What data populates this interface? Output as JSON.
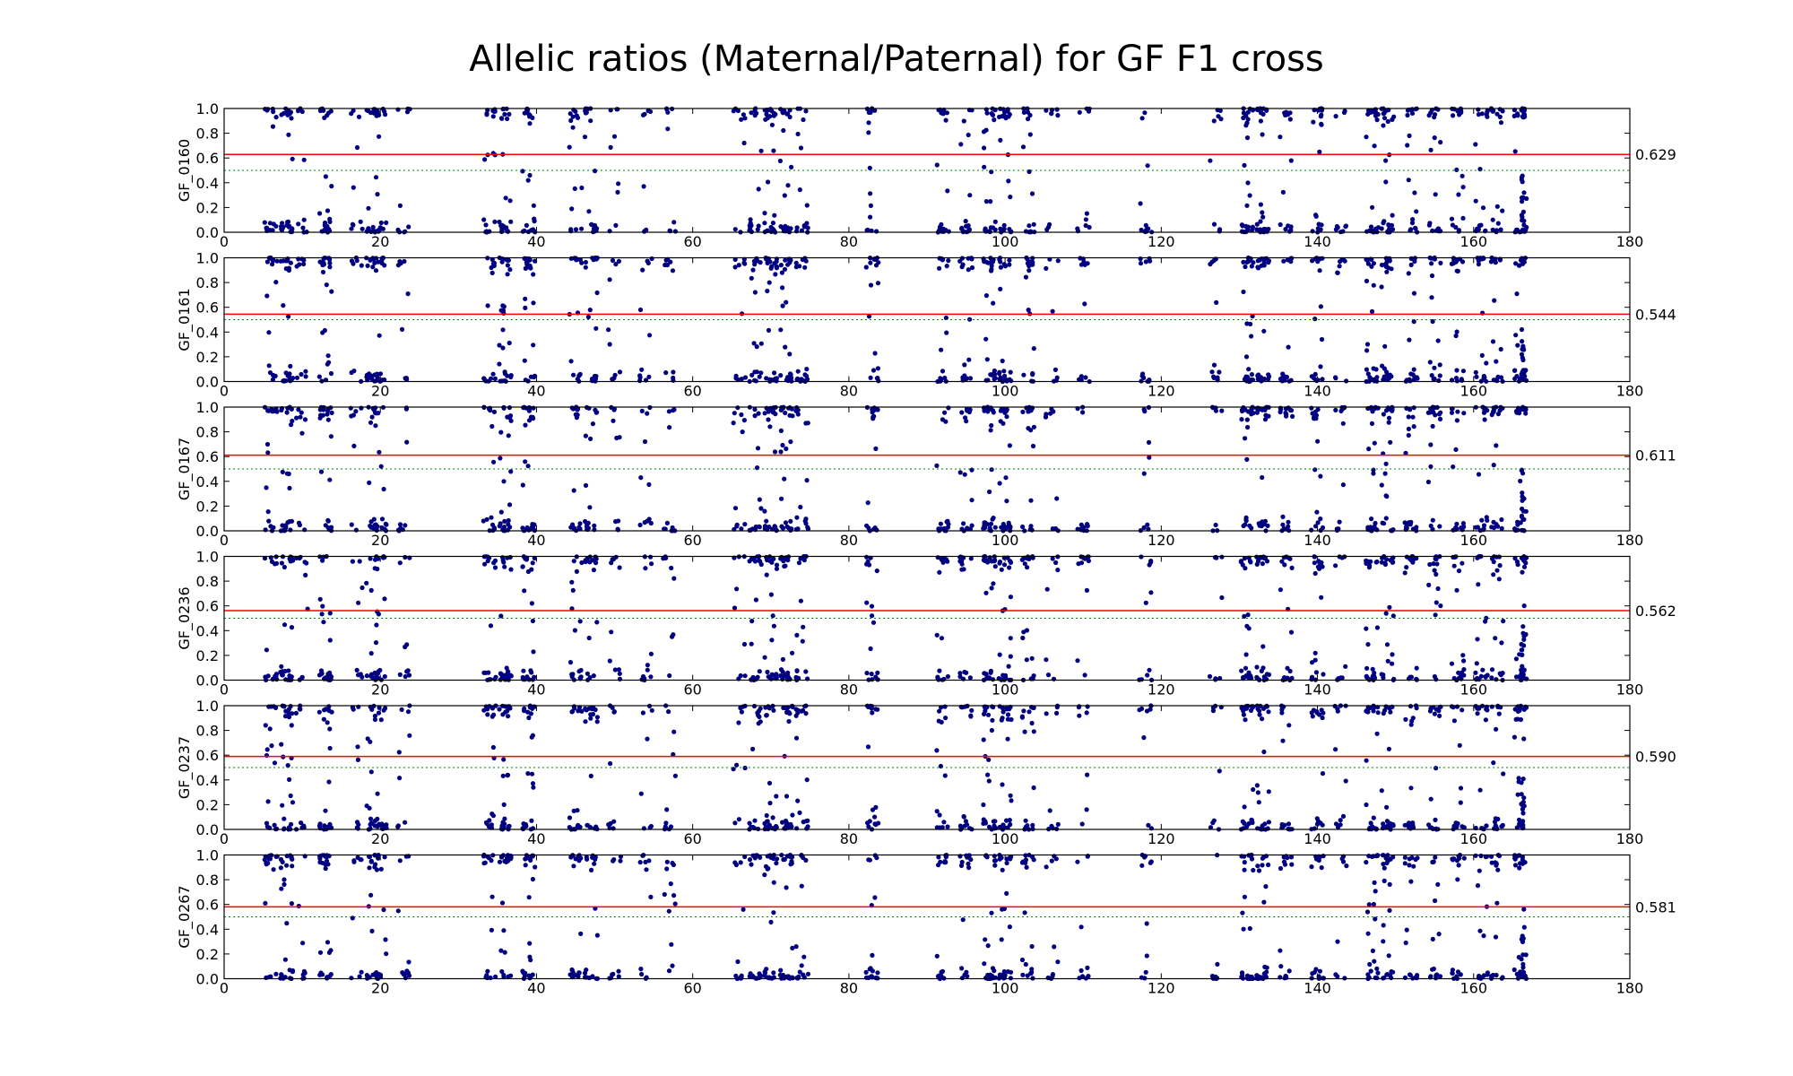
{
  "chart_data": {
    "type": "scatter",
    "title": "Allelic ratios (Maternal/Paternal) for GF F1 cross",
    "xlim": [
      0,
      180
    ],
    "ylim": [
      0,
      1.0
    ],
    "x_ticks": [
      "0",
      "20",
      "40",
      "60",
      "80",
      "100",
      "120",
      "140",
      "160",
      "180"
    ],
    "y_ticks": [
      "0.0",
      "0.2",
      "0.4",
      "0.6",
      "0.8",
      "1.0"
    ],
    "grid": false,
    "colors": {
      "points": "#000080",
      "mean_line": "#ff0000",
      "reference_line": "#008000"
    },
    "reference_value": 0.5,
    "marker_clusters": [
      {
        "x": 6,
        "weight": 2
      },
      {
        "x": 8,
        "weight": 3
      },
      {
        "x": 10,
        "weight": 1
      },
      {
        "x": 13,
        "weight": 3
      },
      {
        "x": 17,
        "weight": 1
      },
      {
        "x": 19,
        "weight": 2
      },
      {
        "x": 20,
        "weight": 2
      },
      {
        "x": 23,
        "weight": 1
      },
      {
        "x": 34,
        "weight": 2
      },
      {
        "x": 36,
        "weight": 3
      },
      {
        "x": 39,
        "weight": 3
      },
      {
        "x": 45,
        "weight": 2
      },
      {
        "x": 47,
        "weight": 2
      },
      {
        "x": 50,
        "weight": 1
      },
      {
        "x": 54,
        "weight": 1
      },
      {
        "x": 57,
        "weight": 1
      },
      {
        "x": 66,
        "weight": 1
      },
      {
        "x": 68,
        "weight": 2
      },
      {
        "x": 70,
        "weight": 3
      },
      {
        "x": 72,
        "weight": 3
      },
      {
        "x": 74,
        "weight": 2
      },
      {
        "x": 83,
        "weight": 2
      },
      {
        "x": 92,
        "weight": 2
      },
      {
        "x": 95,
        "weight": 2
      },
      {
        "x": 98,
        "weight": 3
      },
      {
        "x": 100,
        "weight": 3
      },
      {
        "x": 103,
        "weight": 2
      },
      {
        "x": 106,
        "weight": 1
      },
      {
        "x": 110,
        "weight": 1
      },
      {
        "x": 118,
        "weight": 1
      },
      {
        "x": 127,
        "weight": 1
      },
      {
        "x": 131,
        "weight": 3
      },
      {
        "x": 133,
        "weight": 3
      },
      {
        "x": 136,
        "weight": 2
      },
      {
        "x": 140,
        "weight": 2
      },
      {
        "x": 143,
        "weight": 1
      },
      {
        "x": 147,
        "weight": 3
      },
      {
        "x": 149,
        "weight": 3
      },
      {
        "x": 152,
        "weight": 2
      },
      {
        "x": 155,
        "weight": 2
      },
      {
        "x": 158,
        "weight": 2
      },
      {
        "x": 161,
        "weight": 2
      },
      {
        "x": 163,
        "weight": 2
      },
      {
        "x": 166,
        "weight": 3
      }
    ],
    "panels": [
      {
        "name": "GF_0160",
        "mean": 0.629,
        "mean_label": "0.629"
      },
      {
        "name": "GF_0161",
        "mean": 0.544,
        "mean_label": "0.544"
      },
      {
        "name": "GF_0167",
        "mean": 0.611,
        "mean_label": "0.611"
      },
      {
        "name": "GF_0236",
        "mean": 0.562,
        "mean_label": "0.562"
      },
      {
        "name": "GF_0237",
        "mean": 0.59,
        "mean_label": "0.590"
      },
      {
        "name": "GF_0267",
        "mean": 0.581,
        "mean_label": "0.581"
      }
    ]
  }
}
